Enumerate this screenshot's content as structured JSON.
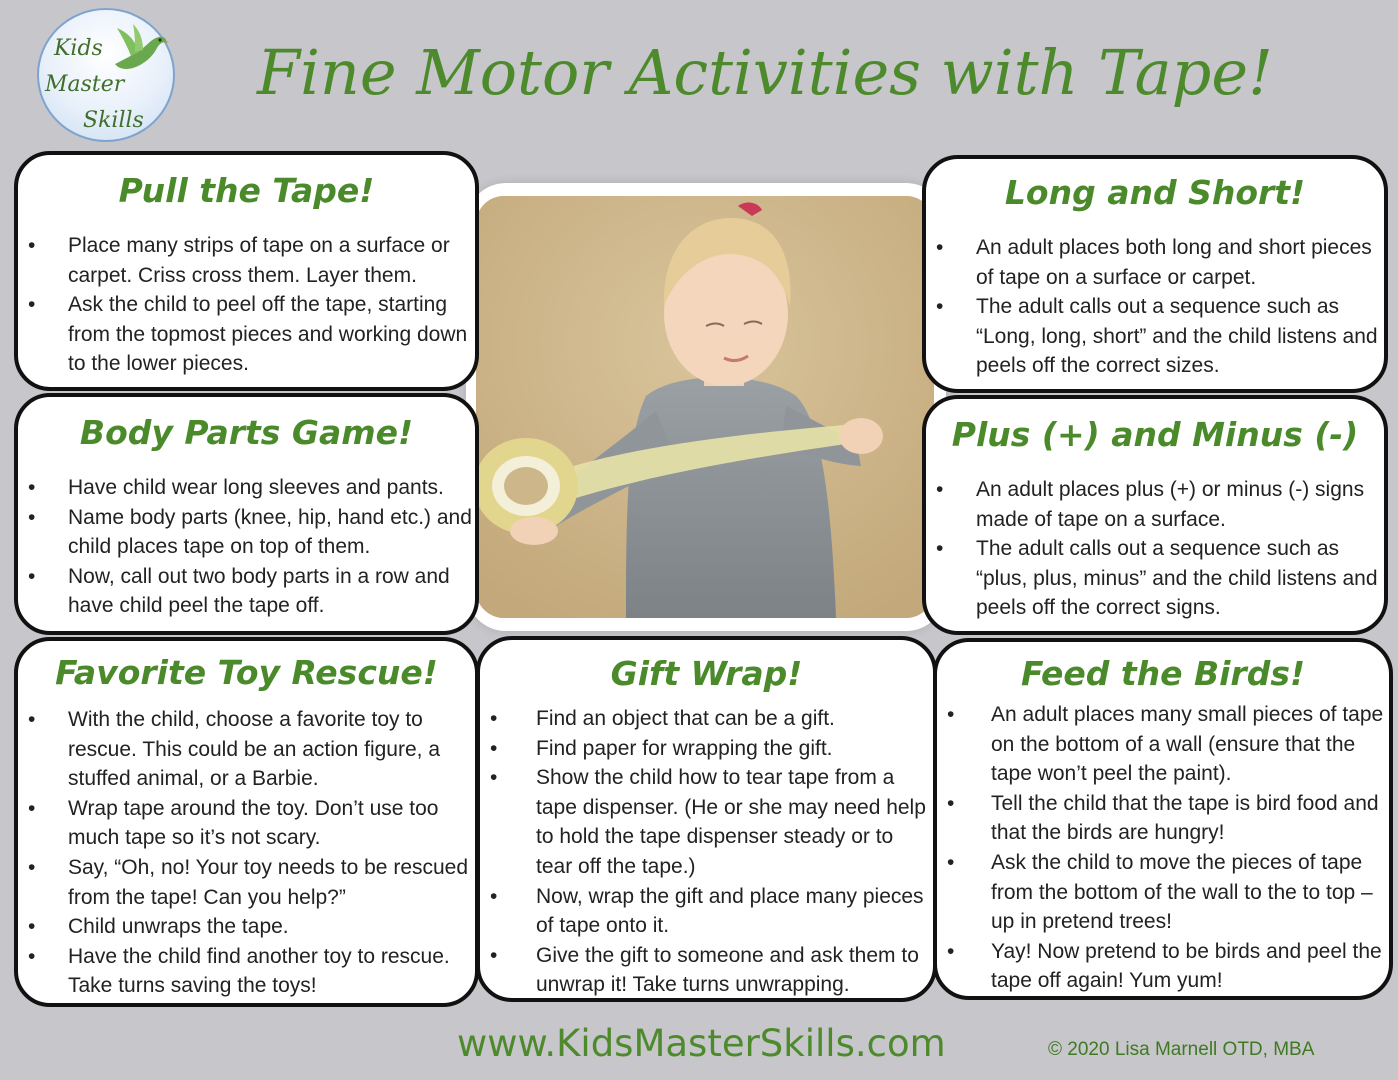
{
  "logo": {
    "line1": "Kids",
    "line2": "Master",
    "line3": "Skills"
  },
  "title": "Fine Motor Activities with Tape!",
  "cards": {
    "pull": {
      "title": "Pull the Tape!",
      "items": [
        "Place many strips of tape on a surface or carpet. Criss cross them. Layer them.",
        "Ask the child to peel off the tape, starting from the topmost pieces and working down to the lower pieces."
      ]
    },
    "body": {
      "title": "Body Parts Game!",
      "items": [
        "Have child wear long sleeves and pants.",
        "Name body parts (knee, hip, hand etc.) and child places tape on top of them.",
        "Now, call out two body parts in a row and have child peel the tape off."
      ]
    },
    "toy": {
      "title": "Favorite Toy Rescue!",
      "items": [
        "With the child, choose a favorite toy to rescue. This could be an action figure, a stuffed animal, or a Barbie.",
        "Wrap tape around the toy. Don’t use too much tape so it’s not scary.",
        "Say, “Oh, no! Your toy needs to be rescued from the tape! Can you help?”",
        "Child unwraps the tape.",
        "Have the child find another toy to rescue. Take turns saving the toys!"
      ]
    },
    "gift": {
      "title": "Gift Wrap!",
      "items": [
        "Find an object that can be a gift.",
        "Find paper for wrapping the gift.",
        "Show the child how to tear tape from a tape dispenser. (He or she may need help to hold the tape dispenser steady or to tear off the tape.)",
        "Now, wrap the gift and place many pieces of tape onto it.",
        "Give the gift to someone and ask them to unwrap it! Take turns unwrapping."
      ]
    },
    "long": {
      "title": "Long and Short!",
      "items": [
        "An adult places both long and short pieces of tape on a surface or carpet.",
        "The adult calls out a sequence such as “Long, long, short” and the child listens and peels off the correct sizes."
      ]
    },
    "plus": {
      "title": "Plus (+) and Minus (-)",
      "items": [
        "An adult places plus (+) or minus (-) signs made of tape on a surface.",
        "The adult calls out a sequence such as “plus, plus, minus” and the child listens and peels off the correct signs."
      ]
    },
    "birds": {
      "title": "Feed the Birds!",
      "items": [
        "An adult places many small pieces of tape on the bottom of a wall (ensure that the tape won’t peel the paint).",
        "Tell the child that the tape is bird food and that the birds are hungry!",
        "Ask the child to move the pieces of tape from the bottom of the wall to the to top – up in pretend trees!",
        "Yay! Now pretend to be birds and peel the tape off again! Yum yum!"
      ]
    }
  },
  "footer": {
    "url": "www.KidsMasterSkills.com",
    "copyright": "© 2020 Lisa Marnell OTD, MBA"
  },
  "colors": {
    "background": "#c7c6cb",
    "title_green": "#4d8a2c",
    "heading_green": "#4a8a2a",
    "card_border": "#111111"
  }
}
